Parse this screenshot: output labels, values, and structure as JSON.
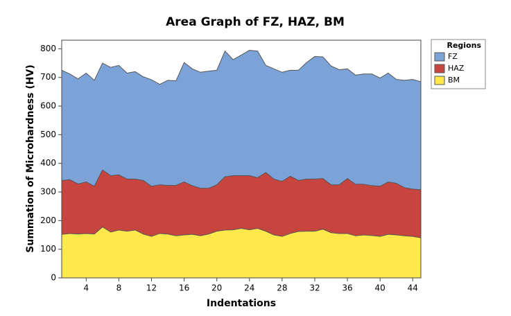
{
  "chart_data": {
    "type": "area",
    "stacked": true,
    "title": "Area Graph of FZ, HAZ, BM",
    "x_label": "Indentations",
    "y_label": "Summation of Microhardness (HV)",
    "legend_title": "Regions",
    "legend_position": "right",
    "x": [
      1,
      2,
      3,
      4,
      5,
      6,
      7,
      8,
      9,
      10,
      11,
      12,
      13,
      14,
      15,
      16,
      17,
      18,
      19,
      20,
      21,
      22,
      23,
      24,
      25,
      26,
      27,
      28,
      29,
      30,
      31,
      32,
      33,
      34,
      35,
      36,
      37,
      38,
      39,
      40,
      41,
      42,
      43,
      44,
      45
    ],
    "series": [
      {
        "name": "FZ",
        "color": "#7ba3d8",
        "values": [
          385,
          369,
          367,
          380,
          370,
          373,
          378,
          382,
          370,
          375,
          362,
          372,
          351,
          367,
          365,
          417,
          408,
          405,
          409,
          400,
          439,
          405,
          421,
          438,
          442,
          374,
          385,
          381,
          370,
          385,
          407,
          428,
          425,
          415,
          402,
          383,
          381,
          385,
          390,
          378,
          380,
          363,
          375,
          383,
          377
        ]
      },
      {
        "name": "HAZ",
        "color": "#c8443f",
        "values": [
          188,
          188,
          175,
          180,
          167,
          199,
          197,
          193,
          182,
          178,
          187,
          175,
          170,
          170,
          176,
          185,
          170,
          166,
          160,
          162,
          186,
          189,
          184,
          189,
          177,
          205,
          195,
          192,
          200,
          178,
          182,
          182,
          177,
          167,
          170,
          192,
          180,
          177,
          174,
          175,
          183,
          180,
          168,
          165,
          168
        ]
      },
      {
        "name": "BM",
        "color": "#ffe84a",
        "values": [
          152,
          155,
          153,
          155,
          153,
          178,
          160,
          167,
          163,
          167,
          153,
          145,
          155,
          153,
          147,
          150,
          152,
          147,
          153,
          163,
          167,
          168,
          173,
          168,
          173,
          163,
          150,
          145,
          155,
          162,
          163,
          163,
          170,
          158,
          155,
          155,
          147,
          150,
          148,
          145,
          152,
          150,
          147,
          145,
          140
        ]
      }
    ],
    "xlim": [
      1,
      45
    ],
    "xticks": [
      4,
      8,
      12,
      16,
      20,
      24,
      28,
      32,
      36,
      40,
      44
    ],
    "ylim": [
      0,
      830
    ],
    "yticks": [
      0,
      100,
      200,
      300,
      400,
      500,
      600,
      700,
      800
    ]
  }
}
